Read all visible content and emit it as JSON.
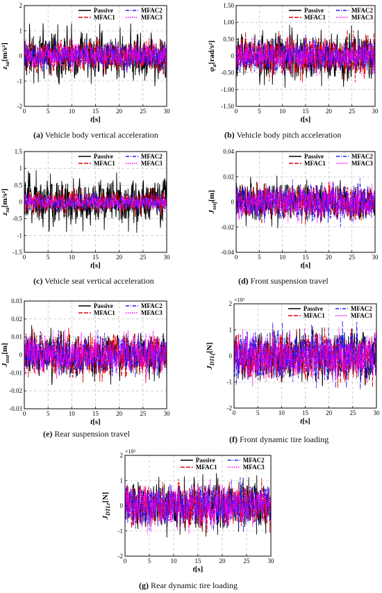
{
  "chart_data": [
    {
      "id": "a",
      "type": "line",
      "caption_letter": "(a)",
      "caption_text": " Vehicle body vertical acceleration",
      "ylabel": "z̈sa [m/s²]",
      "ylabel_main": "z",
      "ylabel_sub": "sa",
      "ylabel_unit": "[m/s²]",
      "xlabel": "t[s]",
      "xlim": [
        0,
        30
      ],
      "ylim": [
        -2,
        2
      ],
      "xticks": [
        0,
        5,
        10,
        15,
        20,
        25,
        30
      ],
      "yticks": [
        -2,
        -1,
        0,
        1,
        2
      ],
      "ytick_labels": [
        "-2",
        "-1",
        "0",
        "1",
        "2"
      ],
      "multiplier": "",
      "amplitude": [
        1.3,
        0.85,
        0.75,
        0.7
      ],
      "series": [
        {
          "name": "Passive",
          "color": "#000000",
          "dash": "solid"
        },
        {
          "name": "MFAC1",
          "color": "#e00000",
          "dash": "longdash"
        },
        {
          "name": "MFAC2",
          "color": "#1a1aff",
          "dash": "dashdot"
        },
        {
          "name": "MFAC3",
          "color": "#ff00ff",
          "dash": "dot"
        }
      ]
    },
    {
      "id": "b",
      "type": "line",
      "caption_letter": "(b)",
      "caption_text": " Vehicle body pitch acceleration",
      "ylabel": "φ̈a [rad/s²]",
      "ylabel_main": "φ",
      "ylabel_sub": "a",
      "ylabel_unit": "[rad/s²]",
      "xlabel": "t[s]",
      "xlim": [
        0,
        30
      ],
      "ylim": [
        -1.5,
        1.5
      ],
      "xticks": [
        0,
        5,
        10,
        15,
        20,
        25,
        30
      ],
      "yticks": [
        -1.5,
        -1,
        -0.5,
        0,
        0.5,
        1,
        1.5
      ],
      "ytick_labels": [
        "-1.50",
        "-1.00",
        "-0.50",
        "0",
        "0.50",
        "1.00",
        "1.50"
      ],
      "multiplier": "",
      "amplitude": [
        0.95,
        0.8,
        0.65,
        0.6
      ],
      "series": [
        {
          "name": "Passive",
          "color": "#000000",
          "dash": "solid"
        },
        {
          "name": "MFAC1",
          "color": "#e00000",
          "dash": "longdash"
        },
        {
          "name": "MFAC2",
          "color": "#1a1aff",
          "dash": "dashdot"
        },
        {
          "name": "MFAC3",
          "color": "#ff00ff",
          "dash": "dot"
        }
      ]
    },
    {
      "id": "c",
      "type": "line",
      "caption_letter": "(c)",
      "caption_text": " Vehicle seat vertical acceleration",
      "ylabel": "z̈sa [m/s²]",
      "ylabel_main": "z",
      "ylabel_sub": "sa",
      "ylabel_unit": "[m/s²]",
      "xlabel": "t[s]",
      "xlim": [
        0,
        30
      ],
      "ylim": [
        -1.5,
        1.5
      ],
      "xticks": [
        0,
        5,
        10,
        15,
        20,
        25,
        30
      ],
      "yticks": [
        -1.5,
        -1,
        -0.5,
        0,
        0.5,
        1,
        1.5
      ],
      "ytick_labels": [
        "-1.5",
        "-1",
        "-0.5",
        "0",
        "0.5",
        "1",
        "1.5"
      ],
      "multiplier": "",
      "amplitude": [
        1.0,
        0.45,
        0.35,
        0.3
      ],
      "series": [
        {
          "name": "Passive",
          "color": "#000000",
          "dash": "solid"
        },
        {
          "name": "MFAC1",
          "color": "#e00000",
          "dash": "longdash"
        },
        {
          "name": "MFAC2",
          "color": "#1a1aff",
          "dash": "dashdot"
        },
        {
          "name": "MFAC3",
          "color": "#ff00ff",
          "dash": "dot"
        }
      ]
    },
    {
      "id": "d",
      "type": "line",
      "caption_letter": "(d)",
      "caption_text": " Front suspension travel",
      "ylabel": "Jsssf [m]",
      "ylabel_main": "J",
      "ylabel_sub": "sssf",
      "ylabel_unit": "[m]",
      "xlabel": "t[s]",
      "xlim": [
        0,
        30
      ],
      "ylim": [
        -0.04,
        0.04
      ],
      "xticks": [
        0,
        5,
        10,
        15,
        20,
        25,
        30
      ],
      "yticks": [
        -0.04,
        -0.02,
        0,
        0.02,
        0.04
      ],
      "ytick_labels": [
        "-0.04",
        "-0.02",
        "0",
        "0.02",
        "0.04"
      ],
      "multiplier": "",
      "amplitude": [
        0.022,
        0.018,
        0.02,
        0.017
      ],
      "series": [
        {
          "name": "Passive",
          "color": "#000000",
          "dash": "solid"
        },
        {
          "name": "MFAC1",
          "color": "#e00000",
          "dash": "longdash"
        },
        {
          "name": "MFAC2",
          "color": "#1a1aff",
          "dash": "dashdot"
        },
        {
          "name": "MFAC3",
          "color": "#ff00ff",
          "dash": "dot"
        }
      ]
    },
    {
      "id": "e",
      "type": "line",
      "caption_letter": "(e)",
      "caption_text": " Rear suspension travel",
      "ylabel": "Jsssr [m]",
      "ylabel_main": "J",
      "ylabel_sub": "sssr",
      "ylabel_unit": "[m]",
      "xlabel": "t[s]",
      "xlim": [
        0,
        30
      ],
      "ylim": [
        -0.03,
        0.03
      ],
      "xticks": [
        0,
        5,
        10,
        15,
        20,
        25,
        30
      ],
      "yticks": [
        -0.03,
        -0.02,
        -0.01,
        0,
        0.01,
        0.02,
        0.03
      ],
      "ytick_labels": [
        "-0.03",
        "-0.02",
        "-0.01",
        "0",
        "0.01",
        "0.02",
        "0.03"
      ],
      "multiplier": "",
      "amplitude": [
        0.017,
        0.016,
        0.015,
        0.014
      ],
      "series": [
        {
          "name": "Passive",
          "color": "#000000",
          "dash": "solid"
        },
        {
          "name": "MFAC1",
          "color": "#e00000",
          "dash": "longdash"
        },
        {
          "name": "MFAC2",
          "color": "#1a1aff",
          "dash": "dashdot"
        },
        {
          "name": "MFAC3",
          "color": "#ff00ff",
          "dash": "dot"
        }
      ]
    },
    {
      "id": "f",
      "type": "line",
      "caption_letter": "(f)",
      "caption_text": " Front dynamic tire loading",
      "ylabel": "JDTLf [N]",
      "ylabel_main": "J",
      "ylabel_sub": "DTLf",
      "ylabel_unit": "[N]",
      "xlabel": "t[s]",
      "xlim": [
        0,
        30
      ],
      "ylim": [
        -2,
        2
      ],
      "xticks": [
        0,
        5,
        10,
        15,
        20,
        25,
        30
      ],
      "yticks": [
        -2,
        -1,
        0,
        1,
        2
      ],
      "ytick_labels": [
        "-2",
        "-1",
        "0",
        "1",
        "2"
      ],
      "multiplier": "×10³",
      "amplitude": [
        1.3,
        1.25,
        1.35,
        1.2
      ],
      "series": [
        {
          "name": "Passive",
          "color": "#000000",
          "dash": "solid"
        },
        {
          "name": "MFAC1",
          "color": "#e00000",
          "dash": "longdash"
        },
        {
          "name": "MFAC2",
          "color": "#1a1aff",
          "dash": "dashdot"
        },
        {
          "name": "MFAC3",
          "color": "#ff00ff",
          "dash": "dot"
        }
      ]
    },
    {
      "id": "g",
      "type": "line",
      "caption_letter": "(g)",
      "caption_text": " Rear dynamic tire loading",
      "ylabel": "JDTLr [N]",
      "ylabel_main": "J",
      "ylabel_sub": "DTLr",
      "ylabel_unit": "[N]",
      "xlabel": "t[s]",
      "xlim": [
        0,
        30
      ],
      "ylim": [
        -2,
        2
      ],
      "xticks": [
        0,
        5,
        10,
        15,
        20,
        25,
        30
      ],
      "yticks": [
        -2,
        -1,
        0,
        1,
        2
      ],
      "ytick_labels": [
        "-2",
        "-1",
        "0",
        "1",
        "2"
      ],
      "multiplier": "×10³",
      "amplitude": [
        1.3,
        1.2,
        1.25,
        1.15
      ],
      "series": [
        {
          "name": "Passive",
          "color": "#000000",
          "dash": "solid"
        },
        {
          "name": "MFAC1",
          "color": "#e00000",
          "dash": "longdash"
        },
        {
          "name": "MFAC2",
          "color": "#1a1aff",
          "dash": "dashdot"
        },
        {
          "name": "MFAC3",
          "color": "#ff00ff",
          "dash": "dot"
        }
      ]
    }
  ]
}
